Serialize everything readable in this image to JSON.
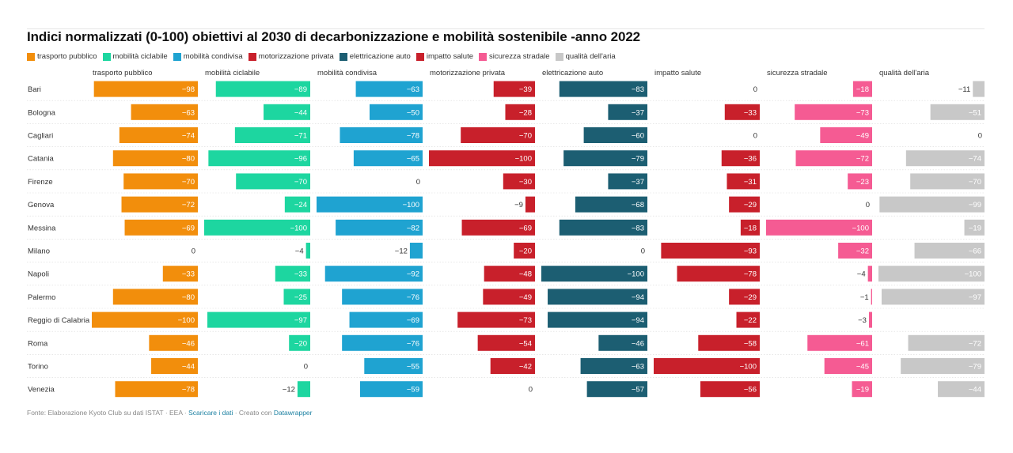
{
  "title": "Indici normalizzati (0-100) obiettivi al 2030 di decarbonizzazione e mobilità sostenibile -anno 2022",
  "footer": {
    "source": "Fonte: Elaborazione Kyoto Club su dati ISTAT · EEA · ",
    "download": "Scaricare i dati",
    "created": " · Creato con ",
    "tool": "Datawrapper"
  },
  "chart_data": {
    "type": "bar",
    "orientation": "horizontal",
    "layout": "small-multiples",
    "title": "Indici normalizzati (0-100) obiettivi al 2030 di decarbonizzazione e mobilità sostenibile -anno 2022",
    "xlim": [
      -100,
      0
    ],
    "legend_position": "top",
    "categories": [
      "Bari",
      "Bologna",
      "Cagliari",
      "Catania",
      "Firenze",
      "Genova",
      "Messina",
      "Milano",
      "Napoli",
      "Palermo",
      "Reggio di Calabria",
      "Roma",
      "Torino",
      "Venezia"
    ],
    "series": [
      {
        "name": "trasporto pubblico",
        "color": "#f28e0c",
        "values": [
          -98,
          -63,
          -74,
          -80,
          -70,
          -72,
          -69,
          0,
          -33,
          -80,
          -100,
          -46,
          -44,
          -78
        ]
      },
      {
        "name": "mobilità ciclabile",
        "color": "#1dd6a0",
        "values": [
          -89,
          -44,
          -71,
          -96,
          -70,
          -24,
          -100,
          -4,
          -33,
          -25,
          -97,
          -20,
          0,
          -12
        ]
      },
      {
        "name": "mobilità condivisa",
        "color": "#1fa3d1",
        "values": [
          -63,
          -50,
          -78,
          -65,
          0,
          -100,
          -82,
          -12,
          -92,
          -76,
          -69,
          -76,
          -55,
          -59
        ]
      },
      {
        "name": "motorizzazione privata",
        "color": "#c8202b",
        "values": [
          -39,
          -28,
          -70,
          -100,
          -30,
          -9,
          -69,
          -20,
          -48,
          -49,
          -73,
          -54,
          -42,
          0
        ]
      },
      {
        "name": "elettricazione auto",
        "color": "#1c5e72",
        "values": [
          -83,
          -37,
          -60,
          -79,
          -37,
          -68,
          -83,
          0,
          -100,
          -94,
          -94,
          -46,
          -63,
          -57
        ]
      },
      {
        "name": "impatto salute",
        "color": "#c8202b",
        "values": [
          0,
          -33,
          0,
          -36,
          -31,
          -29,
          -18,
          -93,
          -78,
          -29,
          -22,
          -58,
          -100,
          -56
        ]
      },
      {
        "name": "sicurezza stradale",
        "color": "#f55b93",
        "values": [
          -18,
          -73,
          -49,
          -72,
          -23,
          0,
          -100,
          -32,
          -4,
          -1,
          -3,
          -61,
          -45,
          -19
        ]
      },
      {
        "name": "qualità dell'aria",
        "color": "#c8c8c8",
        "values": [
          -11,
          -51,
          0,
          -74,
          -70,
          -99,
          -19,
          -66,
          -100,
          -97,
          null,
          -72,
          -79,
          -44
        ]
      }
    ]
  }
}
